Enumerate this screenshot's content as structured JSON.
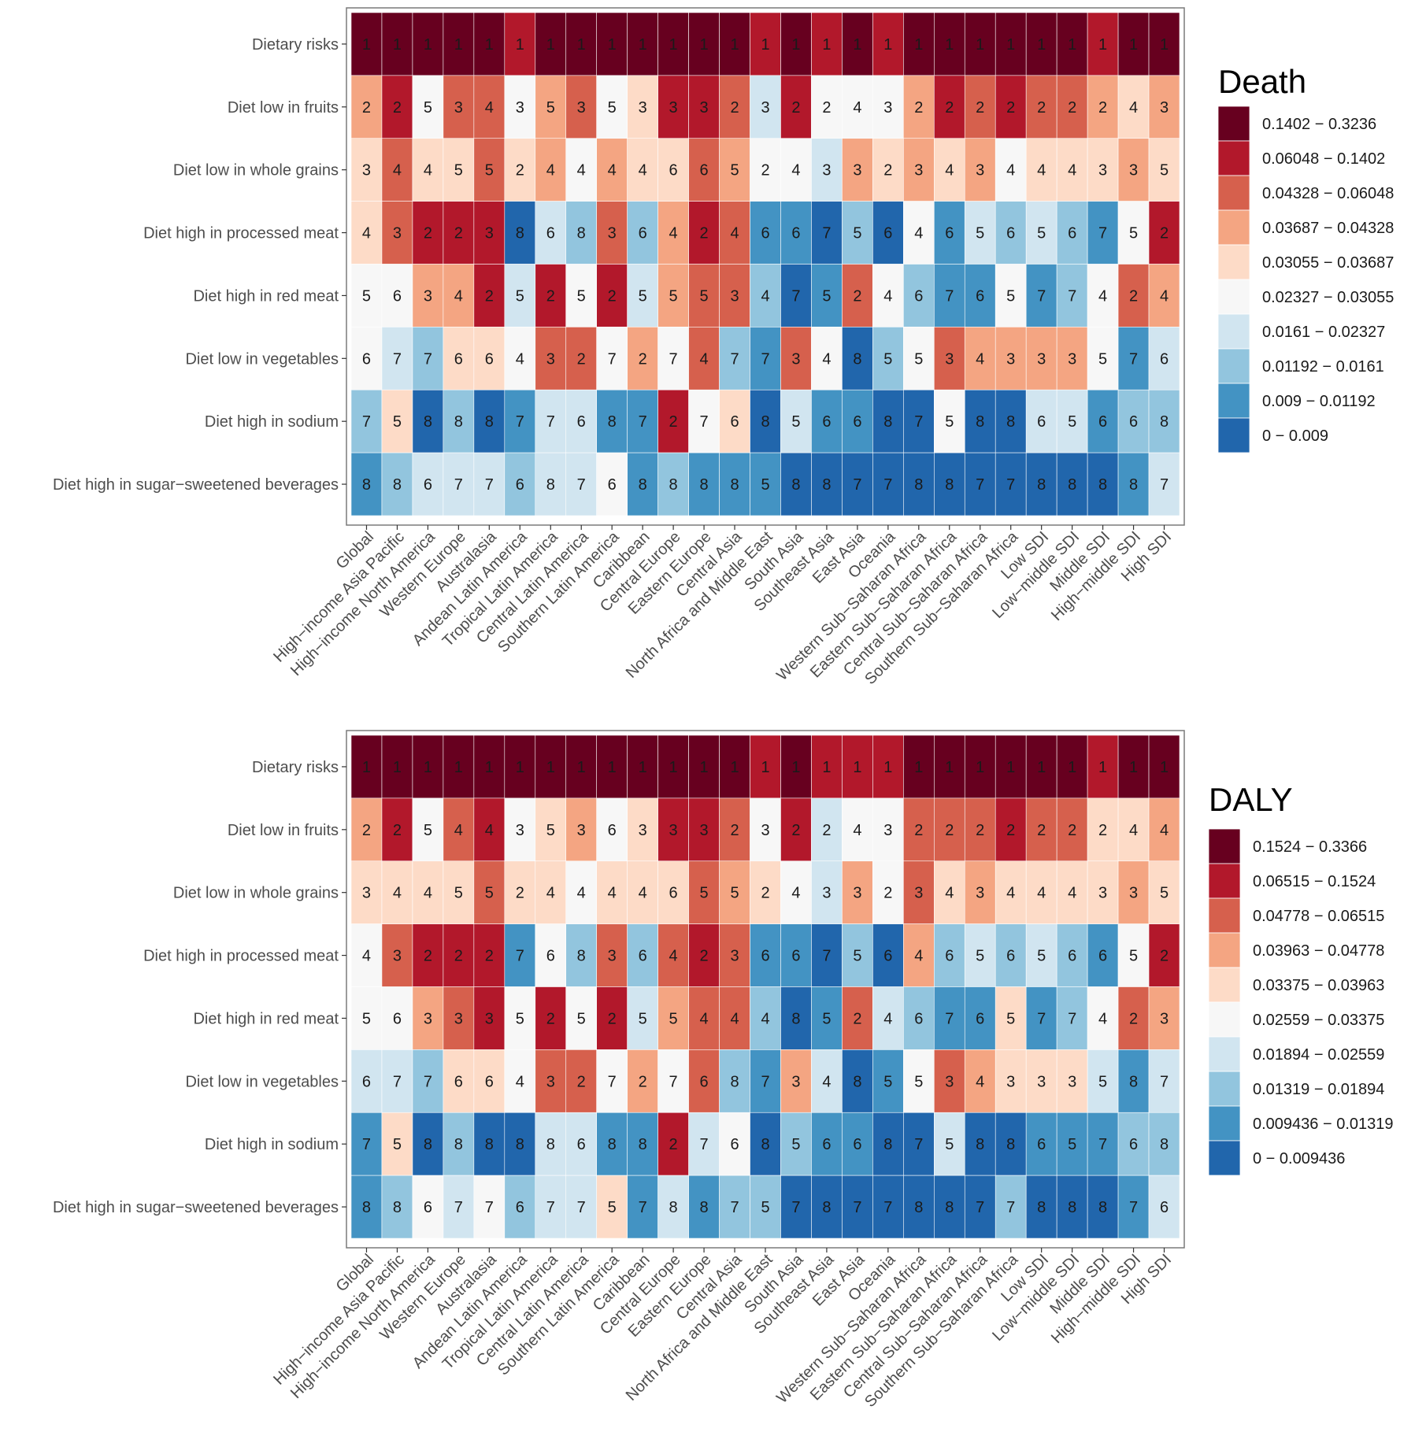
{
  "chart_data": [
    {
      "type": "heatmap",
      "title": "",
      "legend_title": "Death",
      "xlabel": "",
      "ylabel": "",
      "legend_position": "right",
      "rows": [
        "Dietary risks",
        "Diet low in fruits",
        "Diet low in whole grains",
        "Diet high in processed meat",
        "Diet high in red meat",
        "Diet low in vegetables",
        "Diet high in sodium",
        "Diet high in sugar−sweetened beverages"
      ],
      "columns": [
        "Global",
        "High−income Asia Pacific",
        "High−income North America",
        "Western Europe",
        "Australasia",
        "Andean Latin America",
        "Tropical Latin America",
        "Central Latin America",
        "Southern Latin America",
        "Caribbean",
        "Central Europe",
        "Eastern Europe",
        "Central Asia",
        "North Africa and Middle East",
        "South Asia",
        "Southeast Asia",
        "East Asia",
        "Oceania",
        "Western Sub−Saharan Africa",
        "Eastern Sub−Saharan Africa",
        "Central Sub−Saharan Africa",
        "Southern Sub−Saharan Africa",
        "Low SDI",
        "Low−middle SDI",
        "Middle SDI",
        "High−middle SDI",
        "High SDI"
      ],
      "ranks": [
        [
          1,
          1,
          1,
          1,
          1,
          1,
          1,
          1,
          1,
          1,
          1,
          1,
          1,
          1,
          1,
          1,
          1,
          1,
          1,
          1,
          1,
          1,
          1,
          1,
          1,
          1,
          1
        ],
        [
          2,
          2,
          5,
          3,
          4,
          3,
          5,
          3,
          5,
          3,
          3,
          3,
          2,
          3,
          2,
          2,
          4,
          3,
          2,
          2,
          2,
          2,
          2,
          2,
          2,
          4,
          3
        ],
        [
          3,
          4,
          4,
          5,
          5,
          2,
          4,
          4,
          4,
          4,
          6,
          6,
          5,
          2,
          4,
          3,
          3,
          2,
          3,
          4,
          3,
          4,
          4,
          4,
          3,
          3,
          5
        ],
        [
          4,
          3,
          2,
          2,
          3,
          8,
          6,
          8,
          3,
          6,
          4,
          2,
          4,
          6,
          6,
          7,
          5,
          6,
          4,
          6,
          5,
          6,
          5,
          6,
          7,
          5,
          2
        ],
        [
          5,
          6,
          3,
          4,
          2,
          5,
          2,
          5,
          2,
          5,
          5,
          5,
          3,
          4,
          7,
          5,
          2,
          4,
          6,
          7,
          6,
          5,
          7,
          7,
          4,
          2,
          4
        ],
        [
          6,
          7,
          7,
          6,
          6,
          4,
          3,
          2,
          7,
          2,
          7,
          4,
          7,
          7,
          3,
          4,
          8,
          5,
          5,
          3,
          4,
          3,
          3,
          3,
          5,
          7,
          6
        ],
        [
          7,
          5,
          8,
          8,
          8,
          7,
          7,
          6,
          8,
          7,
          2,
          7,
          6,
          8,
          5,
          6,
          6,
          8,
          7,
          5,
          8,
          8,
          6,
          5,
          6,
          6,
          8
        ],
        [
          8,
          8,
          6,
          7,
          7,
          6,
          8,
          7,
          6,
          8,
          8,
          8,
          8,
          5,
          8,
          8,
          7,
          7,
          8,
          8,
          7,
          7,
          8,
          8,
          8,
          8,
          7
        ]
      ],
      "color_bins": [
        [
          9,
          9,
          9,
          9,
          9,
          8,
          9,
          9,
          9,
          9,
          9,
          9,
          9,
          8,
          9,
          8,
          9,
          8,
          9,
          9,
          9,
          9,
          9,
          9,
          8,
          9,
          9
        ],
        [
          6,
          8,
          4,
          7,
          7,
          4,
          6,
          7,
          4,
          5,
          8,
          8,
          7,
          3,
          8,
          4,
          4,
          4,
          6,
          8,
          7,
          8,
          7,
          7,
          6,
          5,
          6
        ],
        [
          5,
          7,
          5,
          5,
          7,
          5,
          6,
          4,
          6,
          5,
          5,
          7,
          6,
          4,
          4,
          3,
          6,
          5,
          6,
          5,
          6,
          4,
          5,
          5,
          5,
          6,
          5
        ],
        [
          5,
          7,
          8,
          8,
          8,
          0,
          3,
          2,
          7,
          2,
          6,
          8,
          7,
          1,
          1,
          0,
          2,
          0,
          4,
          1,
          3,
          2,
          3,
          2,
          1,
          4,
          8
        ],
        [
          4,
          4,
          6,
          6,
          8,
          3,
          8,
          4,
          8,
          3,
          6,
          7,
          7,
          2,
          0,
          1,
          7,
          4,
          2,
          1,
          1,
          4,
          1,
          2,
          4,
          7,
          6
        ],
        [
          4,
          3,
          2,
          5,
          5,
          4,
          7,
          7,
          4,
          6,
          4,
          7,
          2,
          1,
          7,
          4,
          0,
          2,
          4,
          7,
          6,
          6,
          6,
          6,
          4,
          1,
          3
        ],
        [
          2,
          5,
          0,
          2,
          0,
          1,
          3,
          3,
          1,
          1,
          8,
          4,
          5,
          0,
          3,
          1,
          1,
          0,
          0,
          4,
          0,
          0,
          3,
          3,
          1,
          2,
          2
        ],
        [
          1,
          2,
          3,
          3,
          3,
          2,
          3,
          3,
          4,
          1,
          2,
          1,
          1,
          1,
          0,
          0,
          0,
          0,
          0,
          0,
          0,
          0,
          0,
          0,
          0,
          1,
          3
        ]
      ],
      "legend_bins": [
        "0 − 0.009",
        "0.009 − 0.01192",
        "0.01192 − 0.0161",
        "0.0161 − 0.02327",
        "0.02327 − 0.03055",
        "0.03055 − 0.03687",
        "0.03687 − 0.04328",
        "0.04328 − 0.06048",
        "0.06048 − 0.1402",
        "0.1402 − 0.3236"
      ]
    },
    {
      "type": "heatmap",
      "title": "",
      "legend_title": "DALY",
      "xlabel": "",
      "ylabel": "",
      "legend_position": "right",
      "rows": [
        "Dietary risks",
        "Diet low in fruits",
        "Diet low in whole grains",
        "Diet high in processed meat",
        "Diet high in red meat",
        "Diet low in vegetables",
        "Diet high in sodium",
        "Diet high in sugar−sweetened beverages"
      ],
      "columns": [
        "Global",
        "High−income Asia Pacific",
        "High−income North America",
        "Western Europe",
        "Australasia",
        "Andean Latin America",
        "Tropical Latin America",
        "Central Latin America",
        "Southern Latin America",
        "Caribbean",
        "Central Europe",
        "Eastern Europe",
        "Central Asia",
        "North Africa and Middle East",
        "South Asia",
        "Southeast Asia",
        "East Asia",
        "Oceania",
        "Western Sub−Saharan Africa",
        "Eastern Sub−Saharan Africa",
        "Central Sub−Saharan Africa",
        "Southern Sub−Saharan Africa",
        "Low SDI",
        "Low−middle SDI",
        "Middle SDI",
        "High−middle SDI",
        "High SDI"
      ],
      "ranks": [
        [
          1,
          1,
          1,
          1,
          1,
          1,
          1,
          1,
          1,
          1,
          1,
          1,
          1,
          1,
          1,
          1,
          1,
          1,
          1,
          1,
          1,
          1,
          1,
          1,
          1,
          1,
          1
        ],
        [
          2,
          2,
          5,
          4,
          4,
          3,
          5,
          3,
          6,
          3,
          3,
          3,
          2,
          3,
          2,
          2,
          4,
          3,
          2,
          2,
          2,
          2,
          2,
          2,
          2,
          4,
          4
        ],
        [
          3,
          4,
          4,
          5,
          5,
          2,
          4,
          4,
          4,
          4,
          6,
          5,
          5,
          2,
          4,
          3,
          3,
          2,
          3,
          4,
          3,
          4,
          4,
          4,
          3,
          3,
          5
        ],
        [
          4,
          3,
          2,
          2,
          2,
          7,
          6,
          8,
          3,
          6,
          4,
          2,
          3,
          6,
          6,
          7,
          5,
          6,
          4,
          6,
          5,
          6,
          5,
          6,
          6,
          5,
          2
        ],
        [
          5,
          6,
          3,
          3,
          3,
          5,
          2,
          5,
          2,
          5,
          5,
          4,
          4,
          4,
          8,
          5,
          2,
          4,
          6,
          7,
          6,
          5,
          7,
          7,
          4,
          2,
          3
        ],
        [
          6,
          7,
          7,
          6,
          6,
          4,
          3,
          2,
          7,
          2,
          7,
          6,
          8,
          7,
          3,
          4,
          8,
          5,
          5,
          3,
          4,
          3,
          3,
          3,
          5,
          8,
          7
        ],
        [
          7,
          5,
          8,
          8,
          8,
          8,
          8,
          6,
          8,
          8,
          2,
          7,
          6,
          8,
          5,
          6,
          6,
          8,
          7,
          5,
          8,
          8,
          6,
          5,
          7,
          6,
          8
        ],
        [
          8,
          8,
          6,
          7,
          7,
          6,
          7,
          7,
          5,
          7,
          8,
          8,
          7,
          5,
          7,
          8,
          7,
          7,
          8,
          8,
          7,
          7,
          8,
          8,
          8,
          7,
          6
        ]
      ],
      "color_bins": [
        [
          9,
          9,
          9,
          9,
          9,
          9,
          9,
          9,
          9,
          9,
          9,
          9,
          9,
          8,
          9,
          8,
          8,
          8,
          9,
          9,
          9,
          9,
          9,
          9,
          8,
          9,
          9
        ],
        [
          6,
          8,
          4,
          7,
          8,
          4,
          5,
          6,
          4,
          5,
          8,
          8,
          7,
          4,
          8,
          3,
          4,
          4,
          7,
          7,
          7,
          8,
          7,
          7,
          5,
          5,
          6
        ],
        [
          5,
          5,
          5,
          5,
          7,
          5,
          5,
          4,
          5,
          5,
          5,
          7,
          6,
          5,
          4,
          3,
          6,
          4,
          7,
          5,
          6,
          5,
          5,
          5,
          5,
          6,
          5
        ],
        [
          4,
          7,
          8,
          8,
          8,
          1,
          4,
          2,
          7,
          2,
          7,
          8,
          7,
          1,
          1,
          0,
          2,
          0,
          6,
          2,
          3,
          2,
          3,
          2,
          1,
          4,
          8
        ],
        [
          4,
          4,
          6,
          7,
          8,
          4,
          8,
          4,
          8,
          3,
          6,
          7,
          7,
          2,
          0,
          1,
          7,
          3,
          2,
          1,
          1,
          5,
          1,
          2,
          4,
          7,
          6
        ],
        [
          3,
          3,
          2,
          5,
          5,
          4,
          7,
          7,
          4,
          6,
          4,
          7,
          2,
          1,
          6,
          3,
          0,
          1,
          4,
          7,
          6,
          5,
          5,
          5,
          3,
          1,
          3
        ],
        [
          1,
          5,
          0,
          2,
          0,
          0,
          3,
          3,
          1,
          1,
          8,
          3,
          4,
          0,
          2,
          1,
          1,
          0,
          0,
          3,
          0,
          0,
          1,
          1,
          1,
          2,
          2
        ],
        [
          1,
          2,
          4,
          3,
          4,
          2,
          3,
          3,
          5,
          1,
          3,
          1,
          2,
          2,
          0,
          0,
          0,
          0,
          0,
          0,
          0,
          2,
          0,
          0,
          0,
          1,
          3
        ]
      ],
      "legend_bins": [
        "0 − 0.009436",
        "0.009436 − 0.01319",
        "0.01319 − 0.01894",
        "0.01894 − 0.02559",
        "0.02559 − 0.03375",
        "0.03375 − 0.03963",
        "0.03963 − 0.04778",
        "0.04778 − 0.06515",
        "0.06515 − 0.1524",
        "0.1524 − 0.3366"
      ]
    }
  ],
  "colors": {
    "palette": [
      "#2166ac",
      "#4393c3",
      "#92c5de",
      "#d1e5f0",
      "#f7f7f7",
      "#fddbc7",
      "#f4a582",
      "#d6604d",
      "#b2182b",
      "#67001f"
    ],
    "frame": "#7a7a7a",
    "axis_text": "#4d4d4d",
    "cell_text": "#1a1a1a"
  }
}
